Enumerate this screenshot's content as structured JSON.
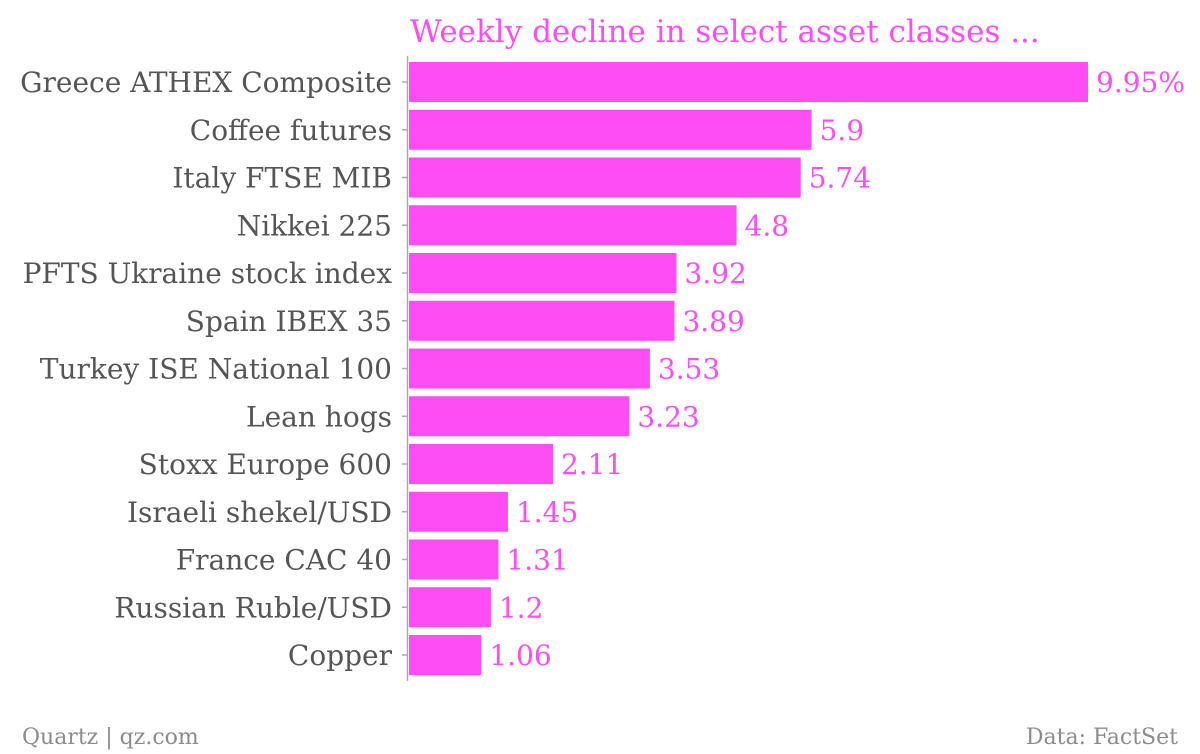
{
  "chart_data": {
    "type": "bar",
    "orientation": "horizontal",
    "title": "Weekly decline in select asset classes ...",
    "categories": [
      "Greece ATHEX Composite",
      "Coffee futures",
      "Italy FTSE MIB",
      "Nikkei 225",
      "PFTS Ukraine stock index",
      "Spain IBEX 35",
      "Turkey ISE National 100",
      "Lean hogs",
      "Stoxx Europe 600",
      "Israeli shekel/USD",
      "France CAC 40",
      "Russian Ruble/USD",
      "Copper"
    ],
    "values": [
      9.95,
      5.9,
      5.74,
      4.8,
      3.92,
      3.89,
      3.53,
      3.23,
      2.11,
      1.45,
      1.31,
      1.2,
      1.06
    ],
    "value_labels": [
      "9.95%",
      "5.9",
      "5.74",
      "4.8",
      "3.92",
      "3.89",
      "3.53",
      "3.23",
      "2.11",
      "1.45",
      "1.31",
      "1.2",
      "1.06"
    ],
    "xlabel": "",
    "ylabel": "",
    "xlim": [
      0,
      9.95
    ],
    "grid": false,
    "legend": "none",
    "bar_color": "#ff4df5",
    "label_color": "#ff4df5",
    "category_text_color": "#555555",
    "axis_color": "#aaaaaa"
  },
  "footer": {
    "left": "Quartz | qz.com",
    "right": "Data: FactSet"
  }
}
